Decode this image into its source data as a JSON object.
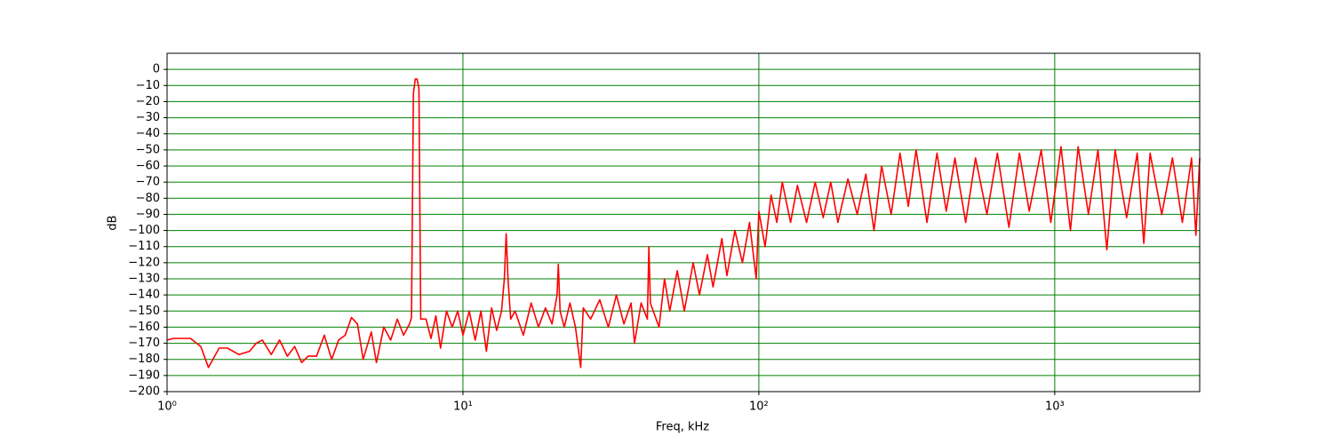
{
  "chart_data": {
    "type": "line",
    "xlabel": "Freq, kHz",
    "ylabel": "dB",
    "xscale": "log",
    "grid": true,
    "grid_color": "#008000",
    "xlim": [
      1,
      3090
    ],
    "ylim": [
      -200,
      10
    ],
    "xticks": [
      {
        "value": 1,
        "label": "10⁰"
      },
      {
        "value": 10,
        "label": "10¹"
      },
      {
        "value": 100,
        "label": "10²"
      },
      {
        "value": 1000,
        "label": "10³"
      }
    ],
    "yticks": [
      0,
      {
        "value": -10,
        "label": "−10"
      },
      {
        "value": -20,
        "label": "−20"
      },
      {
        "value": -30,
        "label": "−30"
      },
      {
        "value": -40,
        "label": "−40"
      },
      {
        "value": -50,
        "label": "−50"
      },
      {
        "value": -60,
        "label": "−60"
      },
      {
        "value": -70,
        "label": "−70"
      },
      {
        "value": -80,
        "label": "−80"
      },
      {
        "value": -90,
        "label": "−90"
      },
      {
        "value": -100,
        "label": "−100"
      },
      {
        "value": -110,
        "label": "−110"
      },
      {
        "value": -120,
        "label": "−120"
      },
      {
        "value": -130,
        "label": "−130"
      },
      {
        "value": -140,
        "label": "−140"
      },
      {
        "value": -150,
        "label": "−150"
      },
      {
        "value": -160,
        "label": "−160"
      },
      {
        "value": -170,
        "label": "−170"
      },
      {
        "value": -180,
        "label": "−180"
      },
      {
        "value": -190,
        "label": "−190"
      },
      {
        "value": -200,
        "label": "−200"
      }
    ],
    "series": [
      {
        "color": "#ff0000",
        "x": [
          1,
          1.05,
          1.2,
          1.3,
          1.38,
          1.5,
          1.6,
          1.75,
          1.9,
          2.0,
          2.1,
          2.25,
          2.4,
          2.55,
          2.7,
          2.85,
          3.0,
          3.2,
          3.4,
          3.6,
          3.8,
          4.0,
          4.2,
          4.4,
          4.6,
          4.9,
          5.1,
          5.4,
          5.7,
          6.0,
          6.3,
          6.6,
          6.7,
          6.8,
          6.9,
          7.0,
          7.1,
          7.2,
          7.5,
          7.8,
          8.1,
          8.4,
          8.8,
          9.2,
          9.6,
          10,
          10.5,
          11,
          11.5,
          12,
          12.5,
          13,
          13.5,
          13.8,
          14,
          14.2,
          14.5,
          15,
          16,
          17,
          18,
          19,
          20,
          20.8,
          21,
          21.3,
          22,
          23,
          24,
          25,
          25.5,
          27,
          29,
          31,
          33,
          35,
          37,
          38,
          40,
          42,
          42.5,
          43,
          46,
          48,
          50,
          53,
          56,
          60,
          63,
          67,
          70,
          75,
          78,
          83,
          88,
          93,
          98,
          100,
          105,
          110,
          115,
          120,
          128,
          135,
          145,
          155,
          165,
          175,
          185,
          200,
          215,
          230,
          245,
          260,
          280,
          300,
          320,
          340,
          370,
          400,
          430,
          460,
          500,
          540,
          590,
          640,
          700,
          760,
          820,
          900,
          970,
          1050,
          1130,
          1200,
          1300,
          1400,
          1500,
          1600,
          1750,
          1900,
          2000,
          2100,
          2300,
          2500,
          2700,
          2900,
          3000,
          3090
        ],
        "values": [
          -168,
          -167,
          -167,
          -172,
          -185,
          -173,
          -173,
          -177,
          -175,
          -170,
          -168,
          -177,
          -168,
          -178,
          -172,
          -182,
          -178,
          -178,
          -165,
          -180,
          -168,
          -165,
          -154,
          -158,
          -180,
          -163,
          -182,
          -160,
          -168,
          -155,
          -165,
          -158,
          -154,
          -15,
          -6,
          -6,
          -12,
          -155,
          -155,
          -167,
          -153,
          -173,
          -150,
          -160,
          -150,
          -165,
          -150,
          -168,
          -150,
          -175,
          -148,
          -162,
          -150,
          -130,
          -102,
          -130,
          -155,
          -150,
          -165,
          -145,
          -160,
          -148,
          -158,
          -140,
          -121,
          -150,
          -160,
          -145,
          -160,
          -185,
          -148,
          -155,
          -143,
          -160,
          -140,
          -158,
          -145,
          -170,
          -145,
          -155,
          -110,
          -145,
          -160,
          -130,
          -150,
          -125,
          -150,
          -120,
          -140,
          -115,
          -135,
          -105,
          -128,
          -100,
          -120,
          -95,
          -130,
          -88,
          -110,
          -78,
          -95,
          -70,
          -95,
          -72,
          -95,
          -70,
          -92,
          -70,
          -95,
          -68,
          -90,
          -65,
          -100,
          -60,
          -90,
          -52,
          -85,
          -50,
          -95,
          -52,
          -88,
          -55,
          -95,
          -55,
          -90,
          -52,
          -98,
          -52,
          -88,
          -50,
          -95,
          -48,
          -100,
          -48,
          -90,
          -50,
          -112,
          -50,
          -92,
          -52,
          -108,
          -52,
          -90,
          -55,
          -95,
          -55,
          -103,
          -55
        ]
      }
    ]
  }
}
